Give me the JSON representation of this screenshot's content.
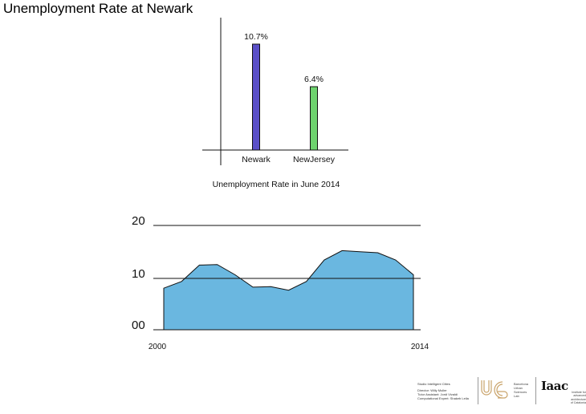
{
  "title": "Unemployment Rate at Newark",
  "chart_data": [
    {
      "type": "bar",
      "title": "Unemployment Rate in June 2014",
      "categories": [
        "Newark",
        "NewJersey"
      ],
      "values": [
        10.7,
        6.4
      ],
      "value_labels": [
        "10.7%",
        "6.4%"
      ],
      "colors": [
        "#5a4fc8",
        "#6fd36f"
      ],
      "ylim": [
        0,
        11.5
      ],
      "grid": false
    },
    {
      "type": "area",
      "x_range": [
        2000,
        2014
      ],
      "x_tick_labels": [
        "2000",
        "2014"
      ],
      "y_tick_labels": [
        "00",
        "10",
        "20"
      ],
      "ylim": [
        0,
        20
      ],
      "grid": true,
      "color": "#6ab7e0",
      "x": [
        2000,
        2001,
        2002,
        2003,
        2004,
        2005,
        2006,
        2007,
        2008,
        2009,
        2010,
        2011,
        2012,
        2013,
        2014
      ],
      "values": [
        8.1,
        9.4,
        12.6,
        12.7,
        10.7,
        8.3,
        8.4,
        7.7,
        9.4,
        13.6,
        15.4,
        15.2,
        15.0,
        13.6,
        10.7
      ]
    }
  ],
  "credits": {
    "studio": "Studio Intelligent Cities",
    "director": "Director: Willy Muller",
    "tutor": "Tutor Assistant: Jordi Vivaldi",
    "computational": "Computational Expert: Shakeb Leila"
  },
  "urban_lab": [
    "Barcelona",
    "Urban",
    "Sciences",
    "Lab"
  ],
  "iaac": {
    "logo": "Iaac",
    "text": [
      "Institute for",
      "advanced",
      "architecture",
      "of Catalonia"
    ]
  }
}
